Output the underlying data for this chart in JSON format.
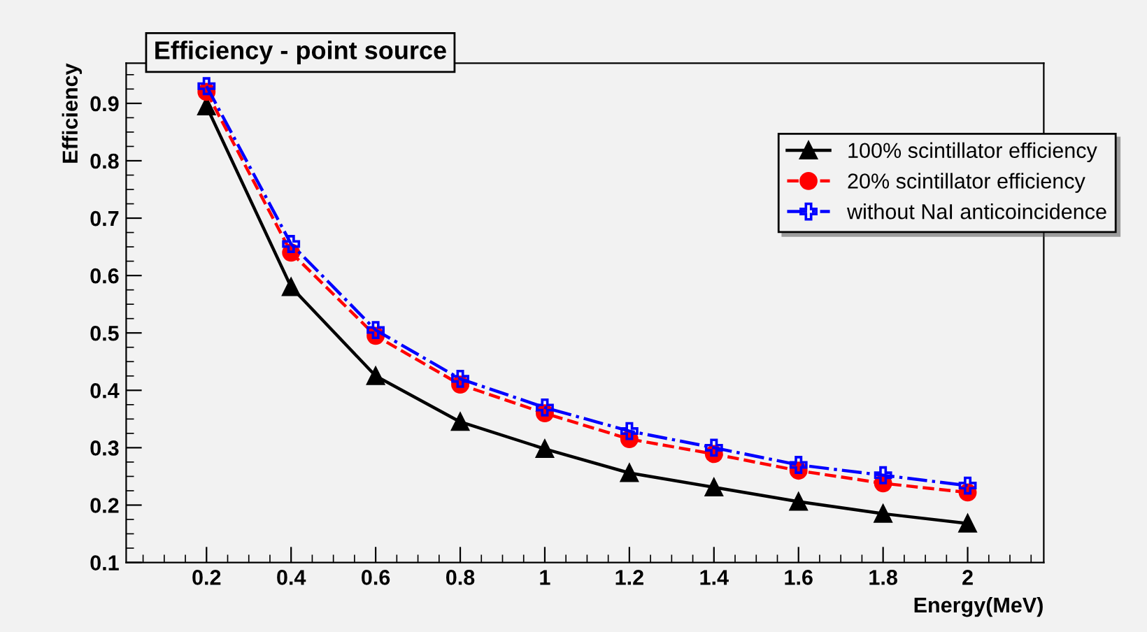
{
  "chart_data": {
    "type": "line",
    "title": "Efficiency - point source",
    "xlabel": "Energy(MeV)",
    "ylabel": "Efficiency",
    "x": [
      0.2,
      0.4,
      0.6,
      0.8,
      1,
      1.2,
      1.4,
      1.6,
      1.8,
      2
    ],
    "series": [
      {
        "name": "100% scintillator efficiency",
        "color": "#000000",
        "marker": "triangle",
        "line_style": "solid",
        "values": [
          0.895,
          0.58,
          0.425,
          0.345,
          0.298,
          0.256,
          0.231,
          0.206,
          0.185,
          0.168
        ]
      },
      {
        "name": "20% scintillator efficiency",
        "color": "#ff0000",
        "marker": "circle",
        "line_style": "dashed",
        "values": [
          0.92,
          0.64,
          0.495,
          0.41,
          0.36,
          0.315,
          0.289,
          0.26,
          0.238,
          0.222
        ]
      },
      {
        "name": "without NaI anticoincidence",
        "color": "#0000ff",
        "marker": "cross",
        "line_style": "dashdot",
        "values": [
          0.93,
          0.655,
          0.505,
          0.42,
          0.37,
          0.329,
          0.3,
          0.27,
          0.252,
          0.234
        ]
      }
    ],
    "xlim": [
      0.01,
      2.18
    ],
    "ylim": [
      0.1,
      0.97
    ],
    "xticks": [
      0.2,
      0.4,
      0.6,
      0.8,
      1,
      1.2,
      1.4,
      1.6,
      1.8,
      2
    ],
    "yticks": [
      0.1,
      0.2,
      0.3,
      0.4,
      0.5,
      0.6,
      0.7,
      0.8,
      0.9
    ],
    "grid": false,
    "legend": "top right"
  }
}
